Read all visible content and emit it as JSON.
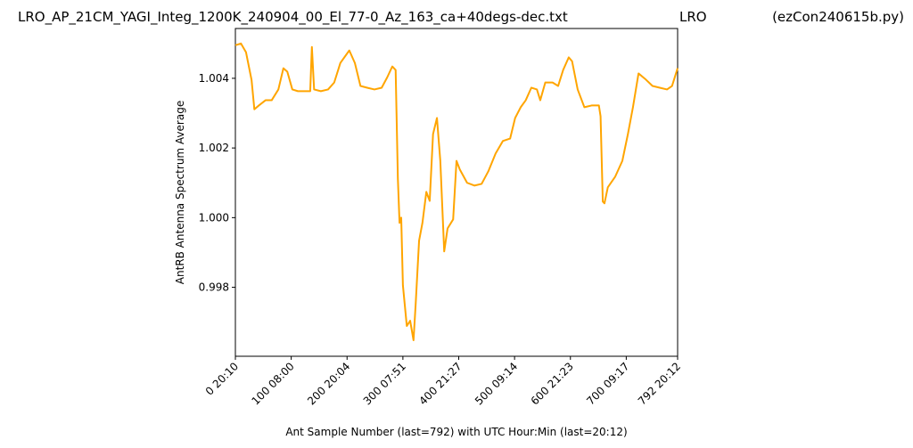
{
  "chart_data": {
    "type": "line",
    "title": [
      "LRO_AP_21CM_YAGI_Integ_1200K_240904_00_El_77-0_Az_163_ca+40degs-dec.txt",
      "LRO",
      "(ezCon240615b.py)"
    ],
    "xlabel": "Ant Sample Number (last=792) with UTC Hour:Min (last=20:12)",
    "ylabel": "AntRB Antenna Spectrum Average",
    "xlim": [
      0,
      792
    ],
    "ylim": [
      0.99602,
      1.00543
    ],
    "xticks": [
      {
        "value": 0,
        "label": "0  20:10"
      },
      {
        "value": 100,
        "label": "100  08:00"
      },
      {
        "value": 200,
        "label": "200  20:04"
      },
      {
        "value": 300,
        "label": "300  07:51"
      },
      {
        "value": 400,
        "label": "400  21:27"
      },
      {
        "value": 500,
        "label": "500  09:14"
      },
      {
        "value": 600,
        "label": "600  21:23"
      },
      {
        "value": 700,
        "label": "700  09:17"
      },
      {
        "value": 792,
        "label": "792  20:12"
      }
    ],
    "yticks": [
      0.998,
      {
        "value": 1,
        "label": "1.000"
      },
      1.002,
      1.004
    ],
    "series": [
      {
        "color": "#ffa500",
        "x": [
          0,
          10,
          19,
          29,
          34,
          42,
          54,
          65,
          77,
          86,
          93,
          102,
          112,
          125,
          134,
          137,
          141,
          153,
          166,
          177,
          188,
          204,
          214,
          224,
          236,
          249,
          262,
          272,
          281,
          287,
          291,
          294,
          297,
          300,
          307,
          313,
          319,
          323,
          329,
          335,
          342,
          348,
          354,
          361,
          367,
          374,
          380,
          390,
          396,
          402,
          415,
          428,
          441,
          453,
          466,
          479,
          492,
          501,
          511,
          520,
          530,
          540,
          546,
          555,
          568,
          578,
          587,
          597,
          603,
          613,
          625,
          638,
          651,
          654,
          658,
          661,
          667,
          680,
          693,
          703,
          712,
          722,
          734,
          747,
          760,
          773,
          782,
          792
        ],
        "values": [
          1.00495,
          1.005,
          1.00475,
          1.00395,
          1.00311,
          1.00322,
          1.00337,
          1.00337,
          1.00368,
          1.00429,
          1.00419,
          1.00368,
          1.00363,
          1.00363,
          1.00363,
          1.0049,
          1.00368,
          1.00363,
          1.00368,
          1.00388,
          1.00444,
          1.0048,
          1.00444,
          1.00378,
          1.00373,
          1.00368,
          1.00373,
          1.00403,
          1.00434,
          1.00424,
          1.00112,
          0.99985,
          1.0,
          0.99806,
          0.99689,
          0.99704,
          0.99648,
          0.99755,
          0.99934,
          0.99985,
          1.00074,
          1.00048,
          1.0024,
          1.00286,
          1.00163,
          0.99903,
          0.99969,
          0.99995,
          1.00163,
          1.00138,
          1.001,
          1.00092,
          1.00097,
          1.00133,
          1.00184,
          1.0022,
          1.00227,
          1.00286,
          1.00317,
          1.00337,
          1.00373,
          1.00368,
          1.00337,
          1.00388,
          1.00388,
          1.00378,
          1.00424,
          1.0046,
          1.00449,
          1.00368,
          1.00317,
          1.00322,
          1.00322,
          1.00291,
          1.00046,
          1.00041,
          1.00087,
          1.00117,
          1.00163,
          1.0024,
          1.00317,
          1.00414,
          1.00398,
          1.00378,
          1.00373,
          1.00368,
          1.00378,
          1.00429
        ]
      }
    ]
  }
}
